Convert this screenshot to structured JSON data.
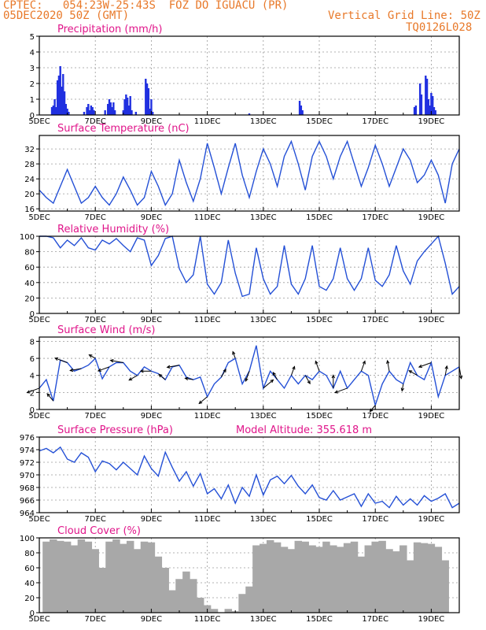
{
  "header": {
    "source": "CPTEC:",
    "location": "054:23W-25:43S  FOZ DO IGUACU (PR)",
    "date": "05DEC2020 50Z (GMT)",
    "grid_note": "Vertical Grid Line: 50Z",
    "code": "TQ0126L028"
  },
  "colors": {
    "line": "#2450d6",
    "bar": "#2030e0",
    "cloud": "#a8a8a8",
    "title": "#e0158a",
    "header": "#e8792a",
    "grid": "#9a9a9a"
  },
  "x_ticks": [
    "5DEC",
    "7DEC",
    "9DEC",
    "11DEC",
    "13DEC",
    "15DEC",
    "17DEC",
    "19DEC"
  ],
  "chart_data": [
    {
      "type": "bar",
      "id": "precip",
      "title": "Precipitation (mm/h)",
      "xlabel": "",
      "ylabel": "mm/h",
      "xlim": [
        5,
        20
      ],
      "ylim": [
        0,
        5
      ],
      "yticks": [
        0,
        1,
        2,
        3,
        4,
        5
      ],
      "x": [
        5.45,
        5.5,
        5.55,
        5.6,
        5.65,
        5.7,
        5.75,
        5.8,
        5.85,
        5.9,
        5.95,
        6.0,
        6.05,
        6.6,
        6.7,
        6.75,
        6.8,
        6.85,
        6.9,
        6.95,
        7.35,
        7.45,
        7.5,
        7.55,
        7.6,
        7.65,
        7.7,
        8.0,
        8.05,
        8.1,
        8.15,
        8.2,
        8.25,
        8.3,
        8.45,
        8.8,
        8.85,
        8.9,
        8.95,
        9.0,
        9.05,
        12.5,
        14.3,
        14.35,
        14.4,
        18.4,
        18.45,
        18.6,
        18.65,
        18.8,
        18.85,
        18.9,
        18.95,
        19.0,
        19.05,
        19.1,
        19.15
      ],
      "values": [
        0.5,
        0.6,
        1.0,
        0.5,
        2.2,
        2.5,
        3.1,
        1.8,
        2.6,
        1.5,
        0.7,
        0.4,
        0.2,
        0.2,
        0.5,
        0.7,
        0.3,
        0.6,
        0.5,
        0.3,
        0.3,
        0.7,
        1.0,
        0.8,
        0.5,
        0.8,
        0.3,
        0.3,
        1.0,
        1.3,
        1.1,
        0.6,
        1.2,
        0.3,
        0.2,
        2.3,
        2.0,
        1.7,
        0.4,
        1.0,
        0.2,
        0.1,
        0.9,
        0.6,
        0.3,
        0.5,
        0.6,
        2.0,
        1.3,
        2.5,
        2.3,
        1.0,
        0.6,
        1.4,
        1.2,
        0.5,
        0.3
      ]
    },
    {
      "type": "line",
      "id": "temp",
      "title": "Surface Temperature (nC)",
      "xlabel": "",
      "ylabel": "nC",
      "xlim": [
        5,
        20
      ],
      "ylim": [
        15.4,
        35.6
      ],
      "yticks": [
        16,
        20,
        24,
        28,
        32
      ],
      "x": [
        5.0,
        5.25,
        5.5,
        5.75,
        6.0,
        6.25,
        6.5,
        6.75,
        7.0,
        7.25,
        7.5,
        7.75,
        8.0,
        8.25,
        8.5,
        8.75,
        9.0,
        9.25,
        9.5,
        9.75,
        10.0,
        10.25,
        10.5,
        10.75,
        11.0,
        11.25,
        11.5,
        11.75,
        12.0,
        12.25,
        12.5,
        12.75,
        13.0,
        13.25,
        13.5,
        13.75,
        14.0,
        14.25,
        14.5,
        14.75,
        15.0,
        15.25,
        15.5,
        15.75,
        16.0,
        16.25,
        16.5,
        16.75,
        17.0,
        17.25,
        17.5,
        17.75,
        18.0,
        18.25,
        18.5,
        18.75,
        19.0,
        19.25,
        19.5,
        19.75,
        20.0
      ],
      "values": [
        21,
        19,
        17.5,
        22,
        26.5,
        22,
        17.5,
        19,
        22,
        19,
        17,
        20,
        24.5,
        21,
        17,
        19,
        26,
        22,
        17,
        20,
        29,
        23,
        18,
        24,
        33.5,
        27,
        20,
        27,
        33.5,
        25,
        19,
        26,
        32,
        28,
        22,
        30,
        34,
        28,
        21,
        30,
        34,
        30,
        24,
        30,
        34,
        28,
        22,
        27,
        33,
        28,
        22,
        27,
        32,
        29,
        23,
        25,
        29,
        25,
        17.5,
        28,
        32
      ]
    },
    {
      "type": "line",
      "id": "rh",
      "title": "Relative Humidity (%)",
      "xlabel": "",
      "ylabel": "%",
      "xlim": [
        5,
        20
      ],
      "ylim": [
        0,
        100
      ],
      "yticks": [
        0,
        20,
        40,
        60,
        80,
        100
      ],
      "x": [
        5.0,
        5.25,
        5.5,
        5.75,
        6.0,
        6.25,
        6.5,
        6.75,
        7.0,
        7.25,
        7.5,
        7.75,
        8.0,
        8.25,
        8.5,
        8.75,
        9.0,
        9.25,
        9.5,
        9.75,
        10.0,
        10.25,
        10.5,
        10.75,
        11.0,
        11.25,
        11.5,
        11.75,
        12.0,
        12.25,
        12.5,
        12.75,
        13.0,
        13.25,
        13.5,
        13.75,
        14.0,
        14.25,
        14.5,
        14.75,
        15.0,
        15.25,
        15.5,
        15.75,
        16.0,
        16.25,
        16.5,
        16.75,
        17.0,
        17.25,
        17.5,
        17.75,
        18.0,
        18.25,
        18.5,
        18.75,
        19.0,
        19.25,
        19.5,
        19.75,
        20.0
      ],
      "values": [
        100,
        100,
        98,
        85,
        95,
        88,
        98,
        85,
        82,
        95,
        90,
        97,
        88,
        80,
        98,
        95,
        62,
        75,
        97,
        100,
        58,
        40,
        50,
        100,
        38,
        25,
        40,
        95,
        52,
        22,
        25,
        85,
        45,
        25,
        35,
        88,
        38,
        25,
        45,
        88,
        35,
        30,
        45,
        85,
        45,
        30,
        45,
        85,
        43,
        35,
        50,
        88,
        55,
        38,
        68,
        80,
        90,
        100,
        65,
        25,
        35
      ]
    },
    {
      "type": "line",
      "id": "wind",
      "title": "Surface Wind (m/s)",
      "xlabel": "",
      "ylabel": "m/s",
      "xlim": [
        5,
        20
      ],
      "ylim": [
        0,
        8.5
      ],
      "yticks": [
        0,
        2,
        4,
        6,
        8
      ],
      "x": [
        5.0,
        5.25,
        5.5,
        5.75,
        6.0,
        6.25,
        6.5,
        6.75,
        7.0,
        7.25,
        7.5,
        7.75,
        8.0,
        8.25,
        8.5,
        8.75,
        9.0,
        9.25,
        9.5,
        9.75,
        10.0,
        10.25,
        10.5,
        10.75,
        11.0,
        11.25,
        11.5,
        11.75,
        12.0,
        12.25,
        12.5,
        12.75,
        13.0,
        13.25,
        13.5,
        13.75,
        14.0,
        14.25,
        14.5,
        14.75,
        15.0,
        15.25,
        15.5,
        15.75,
        16.0,
        16.25,
        16.5,
        16.75,
        17.0,
        17.25,
        17.5,
        17.75,
        18.0,
        18.25,
        18.5,
        18.75,
        19.0,
        19.25,
        19.5,
        19.75,
        20.0
      ],
      "values": [
        2.5,
        3.5,
        1.0,
        5.8,
        5.5,
        4.5,
        4.8,
        5.2,
        6.0,
        3.6,
        5.0,
        5.5,
        5.5,
        4.5,
        4.0,
        5.0,
        4.5,
        4.2,
        3.5,
        5.0,
        5.2,
        3.8,
        3.5,
        3.8,
        1.5,
        3.0,
        3.8,
        5.5,
        6.0,
        3.0,
        4.5,
        7.5,
        2.5,
        4.5,
        3.5,
        2.5,
        4.0,
        3.0,
        4.0,
        3.5,
        4.5,
        4.0,
        2.5,
        4.5,
        2.5,
        3.5,
        4.5,
        4.0,
        0.5,
        3.0,
        4.5,
        3.5,
        3.0,
        5.5,
        4.0,
        3.5,
        5.5,
        1.5,
        4.0,
        4.5,
        5.0
      ],
      "annotations": "wind direction arrows along the series"
    },
    {
      "type": "line",
      "id": "pres",
      "title": "Surface Pressure (hPa)",
      "note": "Model Altitude: 355.618 m",
      "xlabel": "",
      "ylabel": "hPa",
      "xlim": [
        5,
        20
      ],
      "ylim": [
        964,
        976
      ],
      "yticks": [
        964,
        966,
        968,
        970,
        972,
        974,
        976
      ],
      "x": [
        5.0,
        5.25,
        5.5,
        5.75,
        6.0,
        6.25,
        6.5,
        6.75,
        7.0,
        7.25,
        7.5,
        7.75,
        8.0,
        8.25,
        8.5,
        8.75,
        9.0,
        9.25,
        9.5,
        9.75,
        10.0,
        10.25,
        10.5,
        10.75,
        11.0,
        11.25,
        11.5,
        11.75,
        12.0,
        12.25,
        12.5,
        12.75,
        13.0,
        13.25,
        13.5,
        13.75,
        14.0,
        14.25,
        14.5,
        14.75,
        15.0,
        15.25,
        15.5,
        15.75,
        16.0,
        16.25,
        16.5,
        16.75,
        17.0,
        17.25,
        17.5,
        17.75,
        18.0,
        18.25,
        18.5,
        18.75,
        19.0,
        19.25,
        19.5,
        19.75,
        20.0
      ],
      "values": [
        973.8,
        974.2,
        973.5,
        974.4,
        972.5,
        972.0,
        973.5,
        972.8,
        970.5,
        972.2,
        971.8,
        970.8,
        972.0,
        971.0,
        970.0,
        973.0,
        971.0,
        969.8,
        973.6,
        971.2,
        969.0,
        970.5,
        968.2,
        970.2,
        967.0,
        967.8,
        966.2,
        968.4,
        965.5,
        968.0,
        966.6,
        970.0,
        966.8,
        969.2,
        969.8,
        968.6,
        969.9,
        968.2,
        967.0,
        968.4,
        966.4,
        966.0,
        967.5,
        966.0,
        966.5,
        967.0,
        965.0,
        967.0,
        965.5,
        965.8,
        964.8,
        966.6,
        965.2,
        966.2,
        965.2,
        966.7,
        965.8,
        966.3,
        967.0,
        964.8,
        965.5
      ]
    },
    {
      "type": "bar",
      "id": "cloud",
      "title": "Cloud Cover (%)",
      "xlabel": "",
      "ylabel": "%",
      "xlim": [
        5,
        20
      ],
      "ylim": [
        0,
        100
      ],
      "yticks": [
        0,
        20,
        40,
        60,
        80,
        100
      ],
      "x": [
        5.25,
        5.5,
        5.75,
        6.0,
        6.25,
        6.5,
        6.75,
        7.0,
        7.25,
        7.5,
        7.75,
        8.0,
        8.25,
        8.5,
        8.75,
        9.0,
        9.25,
        9.5,
        9.75,
        10.0,
        10.25,
        10.5,
        10.75,
        11.0,
        11.25,
        11.5,
        11.75,
        12.0,
        12.25,
        12.5,
        12.75,
        13.0,
        13.25,
        13.5,
        13.75,
        14.0,
        14.25,
        14.5,
        14.75,
        15.0,
        15.25,
        15.5,
        15.75,
        16.0,
        16.25,
        16.5,
        16.75,
        17.0,
        17.25,
        17.5,
        17.75,
        18.0,
        18.25,
        18.5,
        18.75,
        19.0,
        19.25,
        19.5
      ],
      "values": [
        95,
        98,
        96,
        95,
        90,
        98,
        95,
        85,
        60,
        95,
        98,
        92,
        96,
        85,
        95,
        94,
        75,
        60,
        30,
        45,
        55,
        45,
        20,
        10,
        5,
        0,
        5,
        2,
        25,
        35,
        90,
        92,
        97,
        94,
        88,
        85,
        96,
        95,
        90,
        88,
        95,
        90,
        88,
        93,
        95,
        75,
        90,
        95,
        96,
        85,
        82,
        90,
        70,
        94,
        93,
        92,
        88,
        70
      ]
    }
  ]
}
